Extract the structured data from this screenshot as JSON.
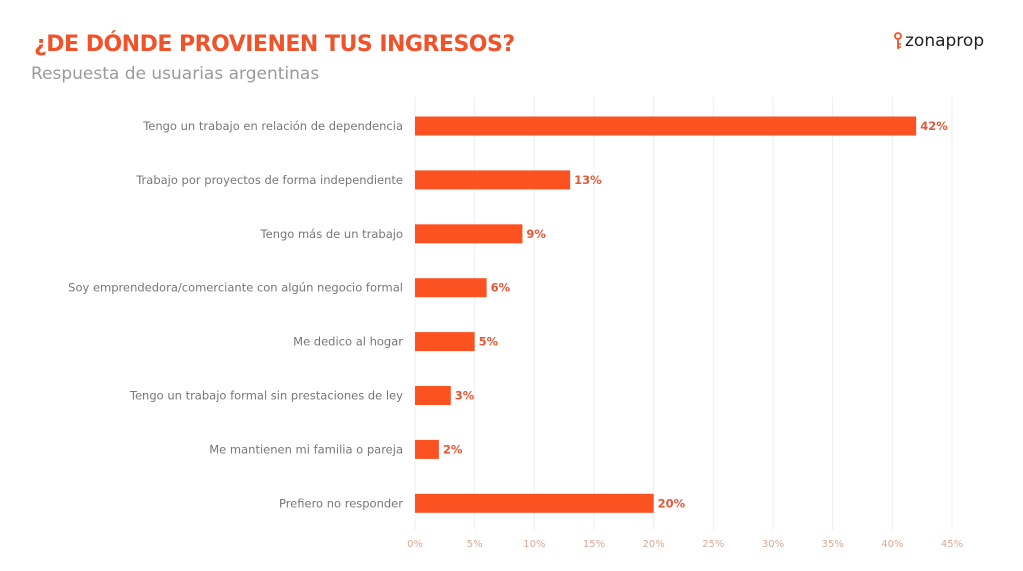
{
  "header": {
    "title": "¿DE DÓNDE PROVIENEN TUS INGRESOS?",
    "subtitle": "Respuesta de usuarias argentinas",
    "logo": "zonaprop"
  },
  "colors": {
    "bar": "#fc5222",
    "accent": "#f0532a",
    "label": "#777777",
    "tick": "#d9a899",
    "grid": "#eeeeee",
    "value": "#e05a3a"
  },
  "chart_data": {
    "type": "bar",
    "orientation": "horizontal",
    "title": "¿DE DÓNDE PROVIENEN TUS INGRESOS?",
    "subtitle": "Respuesta de usuarias argentinas",
    "categories": [
      "Tengo un trabajo en relación de dependencia",
      "Trabajo por proyectos de forma independiente",
      "Tengo más de un trabajo",
      "Soy emprendedora/comerciante con algún negocio formal",
      "Me dedico al hogar",
      "Tengo un trabajo formal sin prestaciones de ley",
      "Me mantienen mi familia o pareja",
      "Prefiero no responder"
    ],
    "values": [
      42,
      13,
      9,
      6,
      5,
      3,
      2,
      20
    ],
    "data_labels": [
      "42%",
      "13%",
      "9%",
      "6%",
      "5%",
      "3%",
      "2%",
      "20%"
    ],
    "xlim": [
      0,
      45
    ],
    "xticks": [
      "0%",
      "5%",
      "10%",
      "15%",
      "20%",
      "25%",
      "30%",
      "35%",
      "40%",
      "45%"
    ],
    "grid": true,
    "xlabel": "",
    "ylabel": ""
  }
}
